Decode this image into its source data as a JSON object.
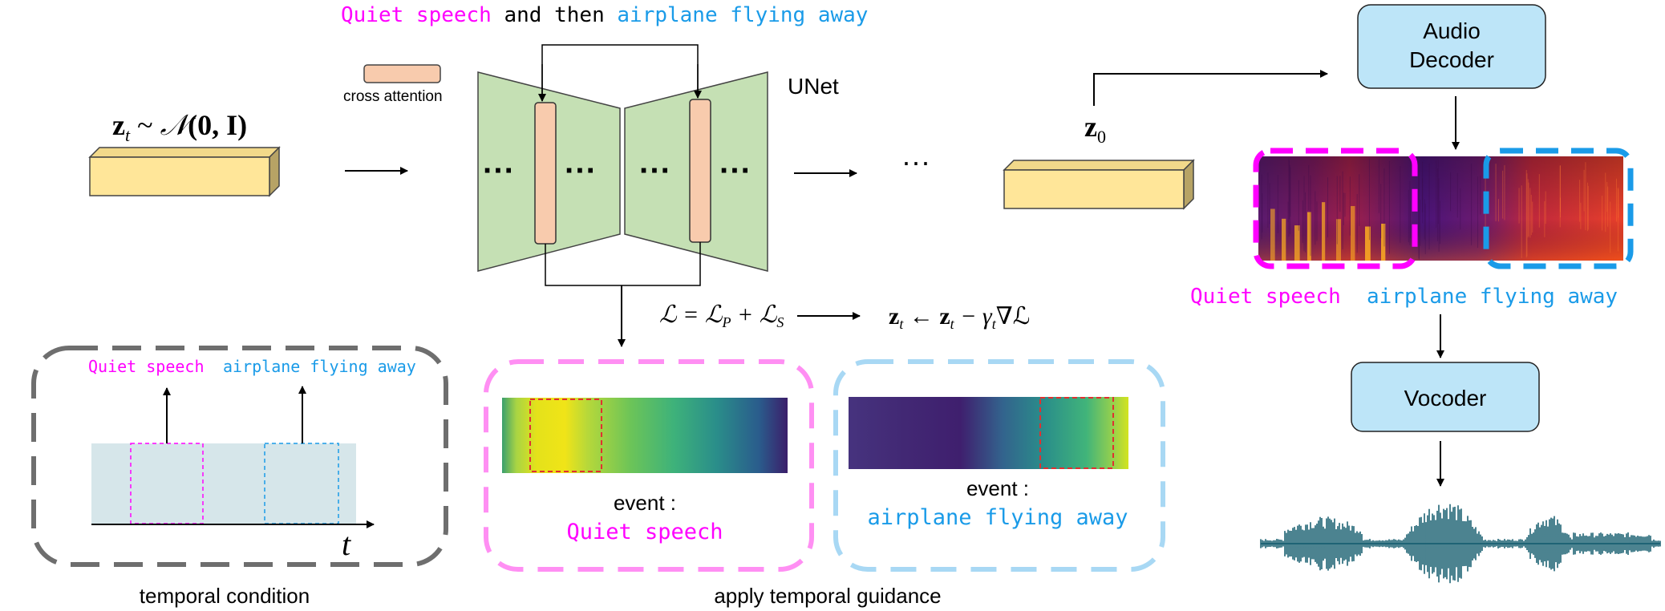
{
  "prompt": {
    "part1": "Quiet speech",
    "part2": " and then ",
    "part3": "airplane flying away"
  },
  "colors": {
    "speech": "#ff00ff",
    "airplane": "#1a9be8",
    "unet_fill": "#c5e0b4",
    "attn_fill": "#f8cbad",
    "latent_fill": "#ffe699",
    "decoder_fill": "#bde5f8",
    "waveform": "#1f6475"
  },
  "latent_input": {
    "z": "z",
    "sub": "t",
    "sim": " ~ ",
    "dist": "𝒩",
    "args": "(0, I)"
  },
  "latent_output": {
    "z": "z",
    "sub": "0"
  },
  "legend": {
    "cross_attention": "cross attention"
  },
  "unet": {
    "label": "UNet",
    "dots": "···"
  },
  "ellipsis": "···",
  "loss": {
    "equation": "ℒ = ℒ",
    "p": "P",
    "plus": " + ℒ",
    "s": "S"
  },
  "update": {
    "z": "z",
    "sub": "t",
    "arrow": " ← ",
    "z2": "z",
    "sub2": "t",
    "minus": " − γ",
    "gsub": "t",
    "grad": "∇ℒ"
  },
  "audio_decoder": {
    "line1": "Audio",
    "line2": "Decoder"
  },
  "vocoder": {
    "label": "Vocoder"
  },
  "spectrogram_labels": {
    "speech": "Quiet speech",
    "airplane": "airplane flying away"
  },
  "temporal_condition": {
    "speech": "Quiet speech",
    "airplane": "airplane flying away",
    "t_axis": "t",
    "caption": "temporal condition"
  },
  "guidance": {
    "event_label_1": "event :",
    "event_name_1": "Quiet speech",
    "event_label_2": "event :",
    "event_name_2": "airplane flying away",
    "caption": "apply temporal guidance"
  }
}
